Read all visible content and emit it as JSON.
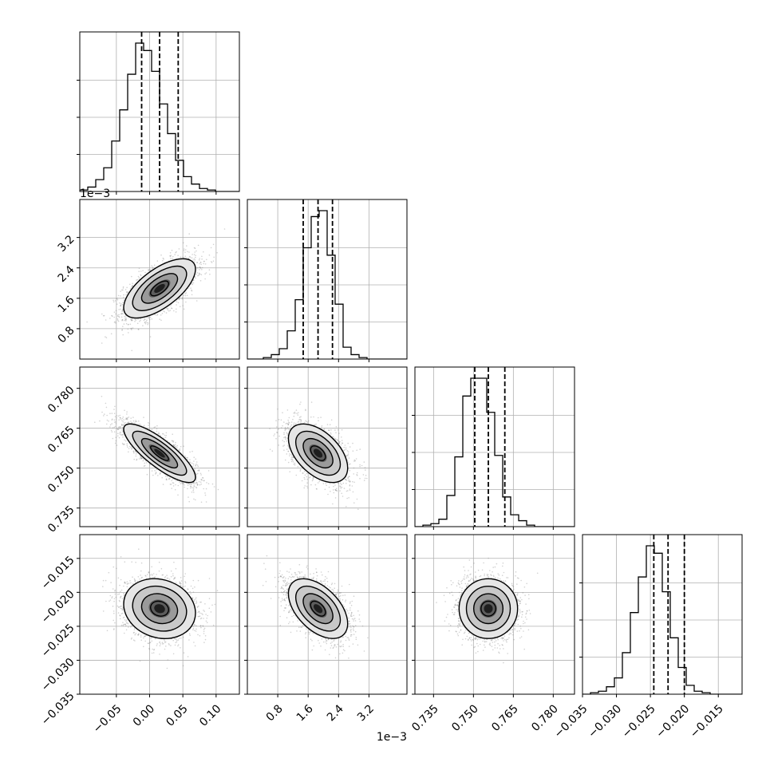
{
  "chart_data": {
    "type": "corner",
    "grid": true,
    "parameters": [
      {
        "name": "",
        "range": [
          -0.105,
          0.135
        ],
        "ticks": [
          -0.05,
          0.0,
          0.05,
          0.1
        ],
        "tick_labels": [
          "−0.05",
          "0.00",
          "0.05",
          "0.10"
        ],
        "offset_text": "",
        "quantiles": [
          -0.012,
          0.015,
          0.043
        ]
      },
      {
        "name": "",
        "range": [
          0.0,
          4.2
        ],
        "ticks": [
          0.8,
          1.6,
          2.4,
          3.2
        ],
        "tick_labels": [
          "0.8",
          "1.6",
          "2.4",
          "3.2"
        ],
        "offset_text": "1e−3",
        "quantiles": [
          1.47,
          1.86,
          2.24
        ]
      },
      {
        "name": "",
        "range": [
          0.728,
          0.788
        ],
        "ticks": [
          0.735,
          0.75,
          0.765,
          0.78
        ],
        "tick_labels": [
          "0.735",
          "0.750",
          "0.765",
          "0.780"
        ],
        "offset_text": "",
        "quantiles": [
          0.7505,
          0.7556,
          0.7618
        ]
      },
      {
        "name": "",
        "range": [
          -0.035,
          -0.0115
        ],
        "ticks": [
          -0.035,
          -0.03,
          -0.025,
          -0.02,
          -0.015
        ],
        "tick_labels": [
          "−0.035",
          "−0.030",
          "−0.025",
          "−0.020",
          "−0.015"
        ],
        "offset_text": "",
        "quantiles": [
          -0.0245,
          -0.0224,
          -0.02
        ]
      }
    ],
    "histograms": [
      {
        "param": 0,
        "bin_counts": [
          1,
          3,
          8,
          16,
          34,
          55,
          79,
          100,
          95,
          81,
          59,
          39,
          21,
          10,
          5,
          2,
          1,
          0,
          0,
          0
        ]
      },
      {
        "param": 1,
        "bin_counts": [
          0,
          0,
          1,
          3,
          7,
          19,
          40,
          75,
          96,
          100,
          70,
          37,
          8,
          3,
          1,
          0,
          0,
          0,
          0,
          0
        ]
      },
      {
        "param": 2,
        "bin_counts": [
          0,
          1,
          2,
          5,
          21,
          47,
          88,
          100,
          100,
          77,
          48,
          20,
          8,
          4,
          1,
          0,
          0,
          0,
          0,
          0
        ]
      },
      {
        "param": 3,
        "bin_counts": [
          0,
          1,
          2,
          5,
          11,
          28,
          55,
          79,
          100,
          95,
          69,
          38,
          18,
          6,
          2,
          1,
          0,
          0,
          0,
          0
        ]
      }
    ],
    "joint": [
      {
        "x": 0,
        "y": 1,
        "mean": [
          0.015,
          1.86
        ],
        "sd": [
          0.027,
          0.39
        ],
        "corr": 0.65
      },
      {
        "x": 0,
        "y": 2,
        "mean": [
          0.015,
          0.7556
        ],
        "sd": [
          0.027,
          0.0055
        ],
        "corr": -0.82
      },
      {
        "x": 1,
        "y": 2,
        "mean": [
          1.86,
          0.7556
        ],
        "sd": [
          0.39,
          0.0055
        ],
        "corr": -0.5
      },
      {
        "x": 0,
        "y": 3,
        "mean": [
          0.015,
          -0.0224
        ],
        "sd": [
          0.027,
          0.0022
        ],
        "corr": -0.15
      },
      {
        "x": 1,
        "y": 3,
        "mean": [
          1.86,
          -0.0224
        ],
        "sd": [
          0.39,
          0.0022
        ],
        "corr": -0.5
      },
      {
        "x": 2,
        "y": 3,
        "mean": [
          0.7556,
          -0.0224
        ],
        "sd": [
          0.0055,
          0.0022
        ],
        "corr": 0.0
      }
    ]
  }
}
